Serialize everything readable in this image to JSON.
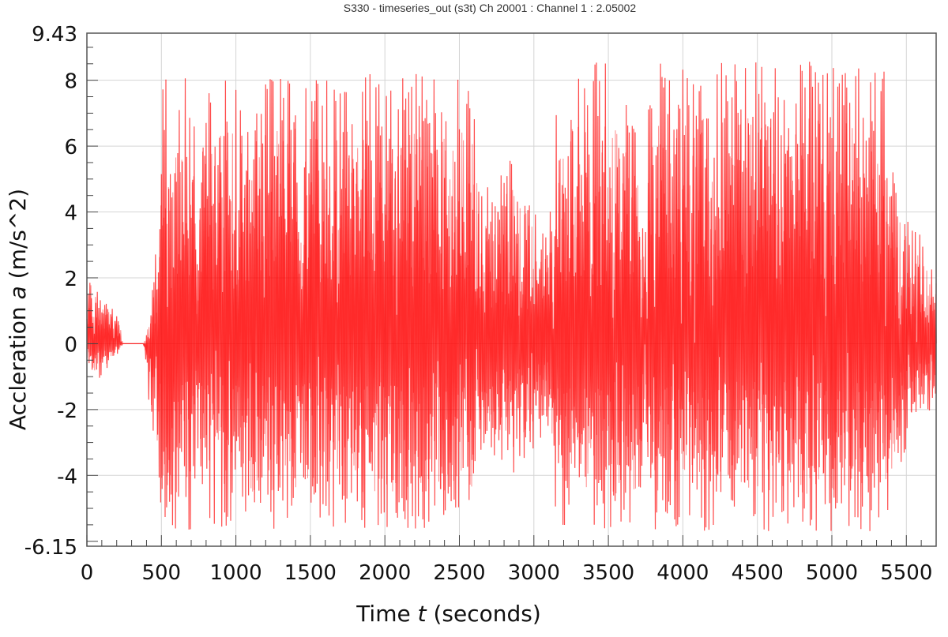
{
  "chart_data": {
    "type": "line",
    "title": "S330 - timeseries_out (s3t)  Ch 20001 : Channel 1 : 2.05002",
    "xlabel": {
      "prefix": "Time ",
      "var": "t",
      "suffix": " (seconds)"
    },
    "ylabel": {
      "prefix": "Accleration ",
      "var": "a",
      "suffix": " (m/s^2)"
    },
    "xlim": [
      0,
      5700
    ],
    "ylim": [
      -6.15,
      9.43
    ],
    "xticks": [
      0,
      500,
      1000,
      1500,
      2000,
      2500,
      3000,
      3500,
      4000,
      4500,
      5000,
      5500
    ],
    "yticks": [
      -6.15,
      -4,
      -2,
      0,
      2,
      4,
      6,
      8,
      9.43
    ],
    "grid": true,
    "series": [
      {
        "color": "#ff0000",
        "envelope": [
          [
            0,
            0.8,
            -0.5
          ],
          [
            20,
            2.4,
            -1.2
          ],
          [
            100,
            1.6,
            -1.0
          ],
          [
            150,
            1.2,
            -0.7
          ],
          [
            220,
            0.8,
            -0.2
          ],
          [
            240,
            0,
            0
          ],
          [
            380,
            0,
            0
          ],
          [
            420,
            1.0,
            -2.0
          ],
          [
            480,
            4.0,
            -4.0
          ],
          [
            500,
            8.0,
            -5.7
          ],
          [
            560,
            8.6,
            -5.7
          ],
          [
            600,
            7.5,
            -5.7
          ],
          [
            700,
            8.6,
            -5.7
          ],
          [
            720,
            7.0,
            -4.8
          ],
          [
            740,
            3.0,
            -3.0
          ],
          [
            780,
            8.2,
            -5.7
          ],
          [
            2600,
            8.2,
            -5.7
          ],
          [
            2650,
            4.6,
            -3.2
          ],
          [
            2750,
            5.2,
            -3.5
          ],
          [
            2850,
            6.1,
            -4.0
          ],
          [
            2950,
            5.0,
            -3.6
          ],
          [
            3100,
            3.0,
            -2.5
          ],
          [
            3150,
            8.6,
            -5.7
          ],
          [
            3550,
            8.6,
            -5.7
          ],
          [
            3700,
            7.5,
            -5.5
          ],
          [
            3740,
            3.0,
            -3.0
          ],
          [
            3780,
            8.6,
            -5.7
          ],
          [
            5350,
            8.6,
            -5.7
          ],
          [
            5420,
            5.0,
            -4.5
          ],
          [
            5550,
            4.0,
            -2.5
          ],
          [
            5700,
            2.0,
            -2.0
          ]
        ]
      }
    ]
  }
}
